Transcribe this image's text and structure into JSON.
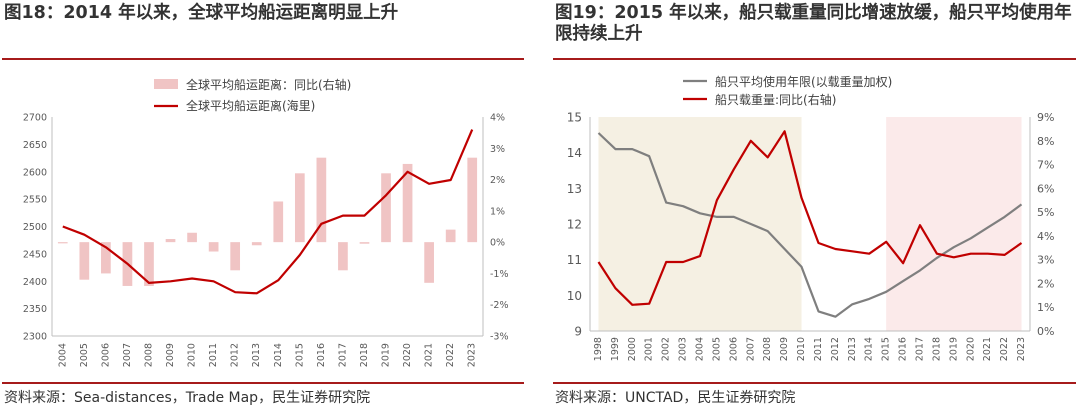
{
  "left": {
    "title": "图18：2014 年以来，全球平均船运距离明显上升",
    "source": "资料来源：Sea-distances，Trade Map，民生证券研究院"
  },
  "right": {
    "title": "图19：2015 年以来，船只载重量同比增速放缓，船只平均使用年限持续上升",
    "source": "资料来源：UNCTAD，民生证券研究院"
  },
  "colors": {
    "bar": "#f0c4c4",
    "red_line": "#c00000",
    "gray_line": "#7f7f7f",
    "shade_left": "#f5f0e3",
    "shade_right": "#fbeaea",
    "rule": "#a61b1b"
  },
  "chart_data": [
    {
      "type": "bar+line",
      "x": [
        "2004",
        "2005",
        "2006",
        "2007",
        "2008",
        "2009",
        "2010",
        "2011",
        "2012",
        "2013",
        "2014",
        "2015",
        "2016",
        "2017",
        "2018",
        "2019",
        "2020",
        "2021",
        "2022",
        "2023"
      ],
      "series": [
        {
          "name": "全球平均船运距离：同比(右轴)",
          "type": "bar",
          "axis": "right",
          "values": [
            0,
            -1.2,
            -1.0,
            -1.4,
            -1.4,
            0.1,
            0.3,
            -0.3,
            -0.9,
            -0.1,
            1.3,
            2.2,
            2.7,
            -0.9,
            -0.05,
            2.2,
            2.5,
            -1.3,
            0.4,
            2.7
          ]
        },
        {
          "name": "全球平均船运距离(海里)",
          "type": "line",
          "axis": "left",
          "values": [
            2500,
            2485,
            2462,
            2432,
            2397,
            2400,
            2405,
            2400,
            2380,
            2378,
            2402,
            2448,
            2505,
            2520,
            2520,
            2557,
            2600,
            2578,
            2585,
            2677
          ]
        }
      ],
      "y_left": {
        "min": 2300,
        "max": 2700,
        "step": 50,
        "ticks": [
          "2300",
          "2350",
          "2400",
          "2450",
          "2500",
          "2550",
          "2600",
          "2650",
          "2700"
        ]
      },
      "y_right": {
        "min": -3,
        "max": 4,
        "step": 1,
        "ticks": [
          "-3%",
          "-2%",
          "-1%",
          "0%",
          "1%",
          "2%",
          "3%",
          "4%"
        ]
      },
      "grid": false,
      "legend": "top-center"
    },
    {
      "type": "line",
      "x": [
        "1998",
        "1999",
        "2000",
        "2001",
        "2002",
        "2003",
        "2004",
        "2005",
        "2006",
        "2007",
        "2008",
        "2009",
        "2010",
        "2011",
        "2012",
        "2013",
        "2014",
        "2015",
        "2016",
        "2017",
        "2018",
        "2019",
        "2020",
        "2021",
        "2022",
        "2023"
      ],
      "series": [
        {
          "name": "船只平均使用年限(以载重量加权)",
          "axis": "left",
          "values": [
            14.55,
            14.1,
            14.1,
            13.9,
            12.6,
            12.5,
            12.3,
            12.2,
            12.2,
            12.0,
            11.8,
            11.3,
            10.8,
            9.55,
            9.4,
            9.75,
            9.9,
            10.1,
            10.4,
            10.7,
            11.05,
            11.35,
            11.6,
            11.9,
            12.2,
            12.55
          ]
        },
        {
          "name": "船只载重量:同比(右轴)",
          "axis": "right",
          "values": [
            2.9,
            1.8,
            1.1,
            1.15,
            2.9,
            2.9,
            3.15,
            5.5,
            6.8,
            8.0,
            7.3,
            8.4,
            5.6,
            3.7,
            3.45,
            3.35,
            3.25,
            3.75,
            2.85,
            4.45,
            3.25,
            3.1,
            3.25,
            3.25,
            3.2,
            3.7
          ]
        }
      ],
      "y_left": {
        "min": 9,
        "max": 15,
        "step": 1,
        "ticks": [
          "9",
          "10",
          "11",
          "12",
          "13",
          "14",
          "15"
        ]
      },
      "y_right": {
        "min": 0,
        "max": 9,
        "step": 1,
        "ticks": [
          "0%",
          "1%",
          "2%",
          "3%",
          "4%",
          "5%",
          "6%",
          "7%",
          "8%",
          "9%"
        ]
      },
      "shaded_ranges": [
        {
          "from": "1998",
          "to": "2010"
        },
        {
          "from": "2015",
          "to": "2023"
        }
      ],
      "grid": false,
      "legend": "top-left"
    }
  ]
}
